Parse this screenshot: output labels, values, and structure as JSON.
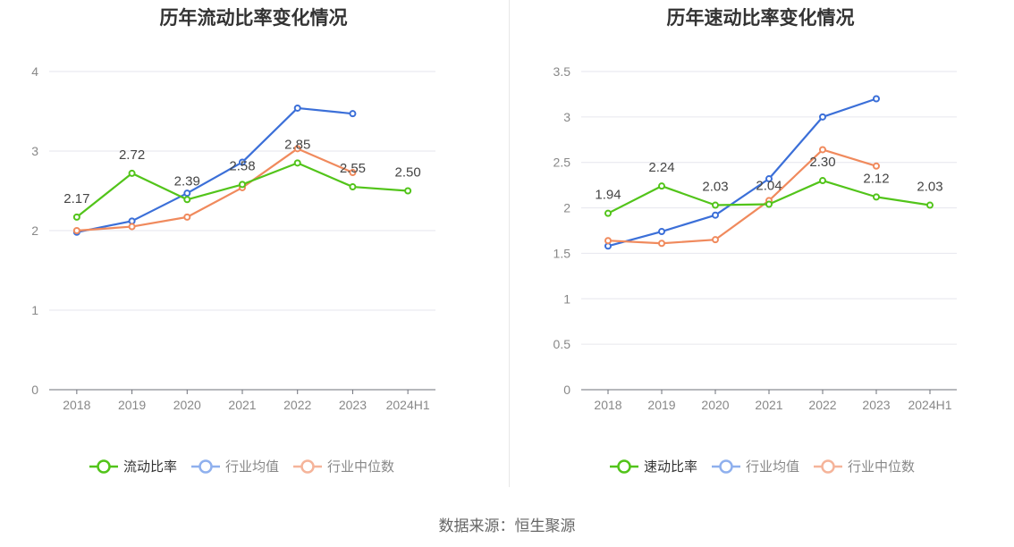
{
  "source_text": "数据来源：恒生聚源",
  "chart_data": [
    {
      "type": "line",
      "title": "历年流动比率变化情况",
      "categories": [
        "2018",
        "2019",
        "2020",
        "2021",
        "2022",
        "2023",
        "2024H1"
      ],
      "ylim": [
        0,
        4
      ],
      "yticks": [
        "0",
        "1",
        "2",
        "3",
        "4"
      ],
      "grid": true,
      "legend_position": "bottom",
      "series": [
        {
          "name": "流动比率",
          "color": "#52c41a",
          "values": [
            2.17,
            2.72,
            2.39,
            2.58,
            2.85,
            2.55,
            2.5
          ],
          "labels": [
            "2.17",
            "2.72",
            "2.39",
            "2.58",
            "2.85",
            "2.55",
            "2.50"
          ]
        },
        {
          "name": "行业均值",
          "color": "#3b6fd8",
          "values": [
            1.98,
            2.12,
            2.47,
            2.86,
            3.54,
            3.47,
            null
          ]
        },
        {
          "name": "行业中位数",
          "color": "#f08a5d",
          "values": [
            2.0,
            2.05,
            2.17,
            2.54,
            3.03,
            2.73,
            null
          ]
        }
      ]
    },
    {
      "type": "line",
      "title": "历年速动比率变化情况",
      "categories": [
        "2018",
        "2019",
        "2020",
        "2021",
        "2022",
        "2023",
        "2024H1"
      ],
      "ylim": [
        0,
        3.5
      ],
      "yticks": [
        "0",
        "0.5",
        "1",
        "1.5",
        "2",
        "2.5",
        "3",
        "3.5"
      ],
      "grid": true,
      "legend_position": "bottom",
      "series": [
        {
          "name": "速动比率",
          "color": "#52c41a",
          "values": [
            1.94,
            2.24,
            2.03,
            2.04,
            2.3,
            2.12,
            2.03
          ],
          "labels": [
            "1.94",
            "2.24",
            "2.03",
            "2.04",
            "2.30",
            "2.12",
            "2.03"
          ]
        },
        {
          "name": "行业均值",
          "color": "#3b6fd8",
          "values": [
            1.58,
            1.74,
            1.92,
            2.32,
            3.0,
            3.2,
            null
          ]
        },
        {
          "name": "行业中位数",
          "color": "#f08a5d",
          "values": [
            1.64,
            1.61,
            1.65,
            2.08,
            2.64,
            2.46,
            null
          ]
        }
      ]
    }
  ]
}
